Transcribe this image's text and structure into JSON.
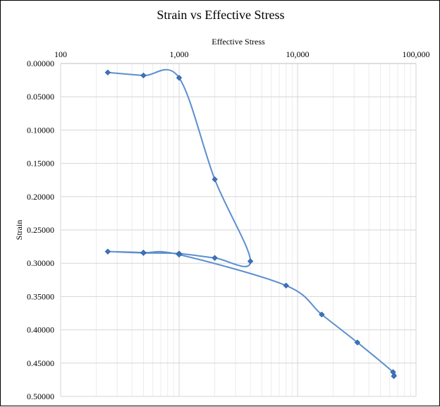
{
  "chart_data": {
    "type": "scatter",
    "title": "Strain vs Effective Stress",
    "xlabel": "Effective Stress",
    "ylabel": "Strain",
    "x_scale": "log",
    "xlim": [
      100,
      100000
    ],
    "ylim": [
      0,
      0.5
    ],
    "y_inverted": true,
    "x_axis_position": "top",
    "x_ticks": [
      100,
      1000,
      10000,
      100000
    ],
    "x_tick_labels": [
      "100",
      "1,000",
      "10,000",
      "100,000"
    ],
    "y_ticks": [
      0,
      0.05,
      0.1,
      0.15,
      0.2,
      0.25,
      0.3,
      0.35,
      0.4,
      0.45,
      0.5
    ],
    "y_tick_labels": [
      "0.00000",
      "0.05000",
      "0.10000",
      "0.15000",
      "0.20000",
      "0.25000",
      "0.30000",
      "0.35000",
      "0.40000",
      "0.45000",
      "0.50000"
    ],
    "grid": true,
    "line_style": "smoothed",
    "series": [
      {
        "name": "Strain",
        "color": "#5B8FD0",
        "marker_color": "#3E74BE",
        "points": [
          {
            "x": 250,
            "y": 0.0135
          },
          {
            "x": 500,
            "y": 0.018
          },
          {
            "x": 1000,
            "y": 0.0215
          },
          {
            "x": 2000,
            "y": 0.174
          },
          {
            "x": 4000,
            "y": 0.297
          },
          {
            "x": 2000,
            "y": 0.292
          },
          {
            "x": 1000,
            "y": 0.2855
          },
          {
            "x": 500,
            "y": 0.2845
          },
          {
            "x": 250,
            "y": 0.2825
          },
          {
            "x": 500,
            "y": 0.284
          },
          {
            "x": 1000,
            "y": 0.287
          },
          {
            "x": 8000,
            "y": 0.3335
          },
          {
            "x": 16000,
            "y": 0.377
          },
          {
            "x": 32000,
            "y": 0.419
          },
          {
            "x": 64000,
            "y": 0.4635
          },
          {
            "x": 65000,
            "y": 0.4695
          }
        ]
      }
    ]
  }
}
